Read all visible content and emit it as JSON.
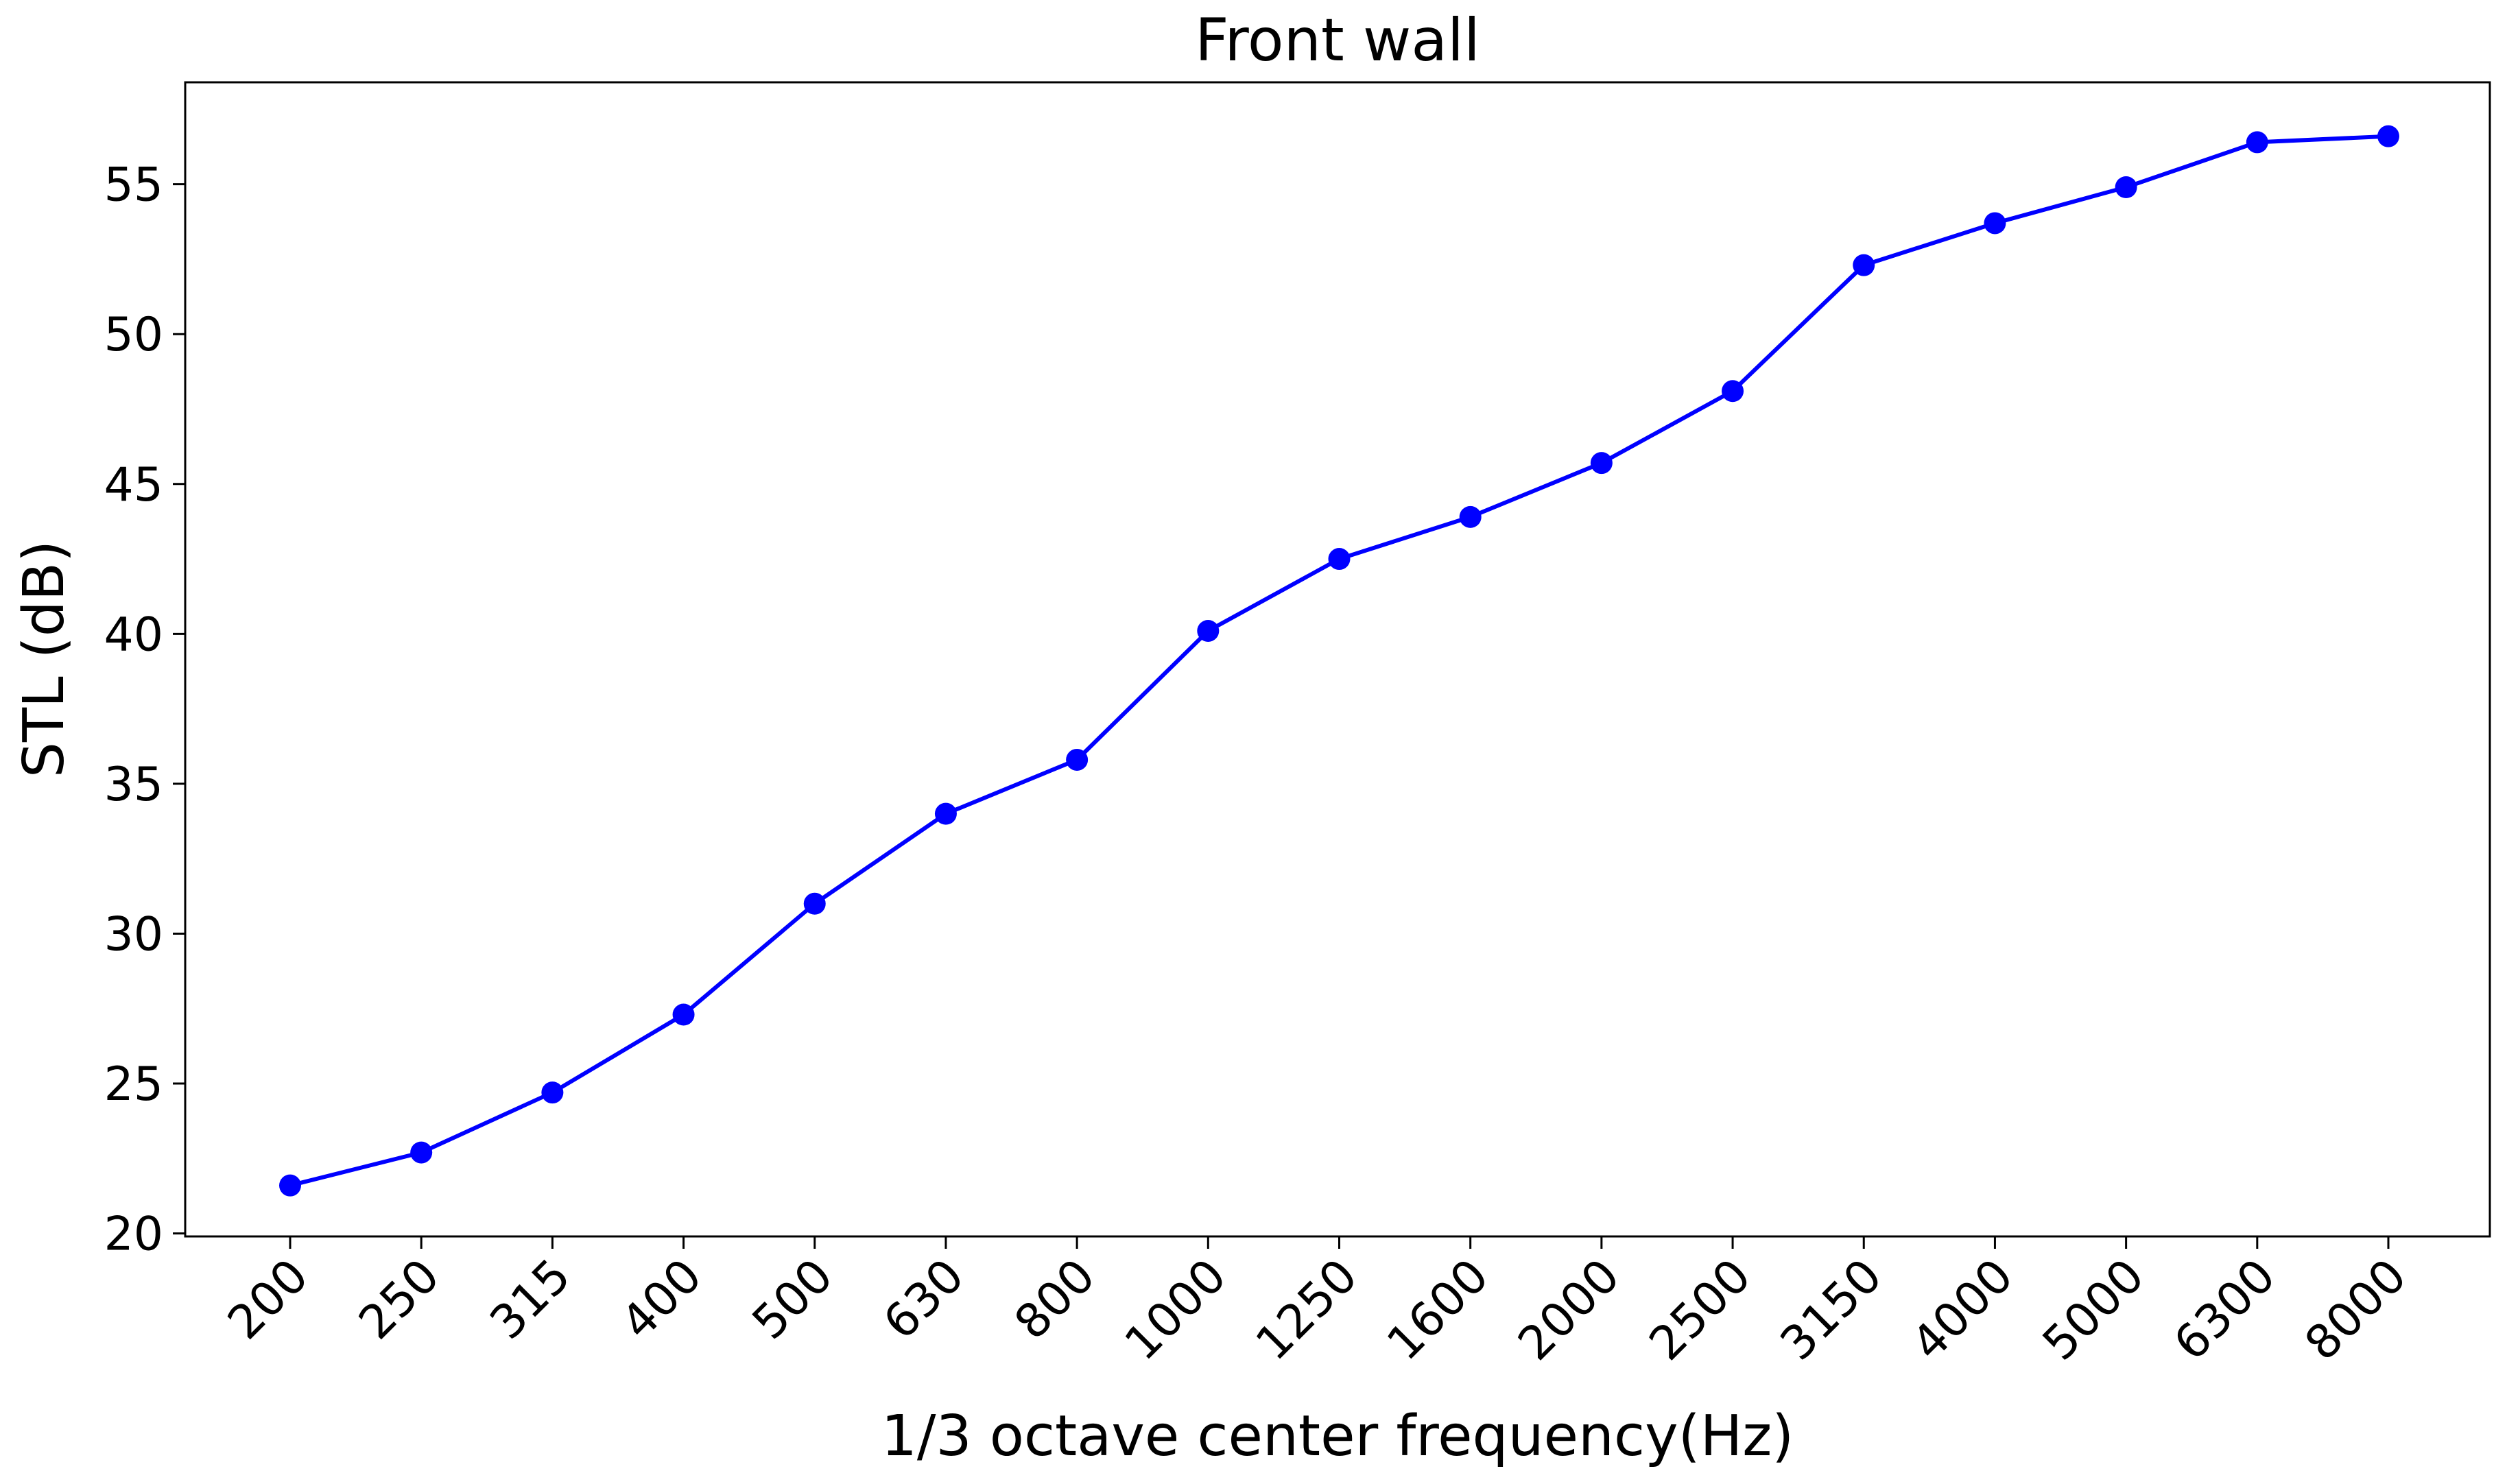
{
  "chart_data": {
    "type": "line",
    "title": "Front wall",
    "xlabel": "1/3 octave center frequency(Hz)",
    "ylabel": "STL (dB)",
    "categories": [
      "200",
      "250",
      "315",
      "400",
      "500",
      "630",
      "800",
      "1000",
      "1250",
      "1600",
      "2000",
      "2500",
      "3150",
      "4000",
      "5000",
      "6300",
      "8000"
    ],
    "series": [
      {
        "values": [
          21.6,
          22.7,
          24.7,
          27.3,
          31.0,
          34.0,
          35.8,
          40.1,
          42.5,
          43.9,
          45.7,
          48.1,
          52.3,
          53.7,
          54.9,
          56.4,
          56.6
        ]
      }
    ],
    "ylim": [
      19.9,
      58.4
    ],
    "yticks": [
      20,
      25,
      30,
      35,
      40,
      45,
      50,
      55
    ],
    "grid": false,
    "line_color": "#0000ff",
    "marker_color": "#0000ff"
  }
}
